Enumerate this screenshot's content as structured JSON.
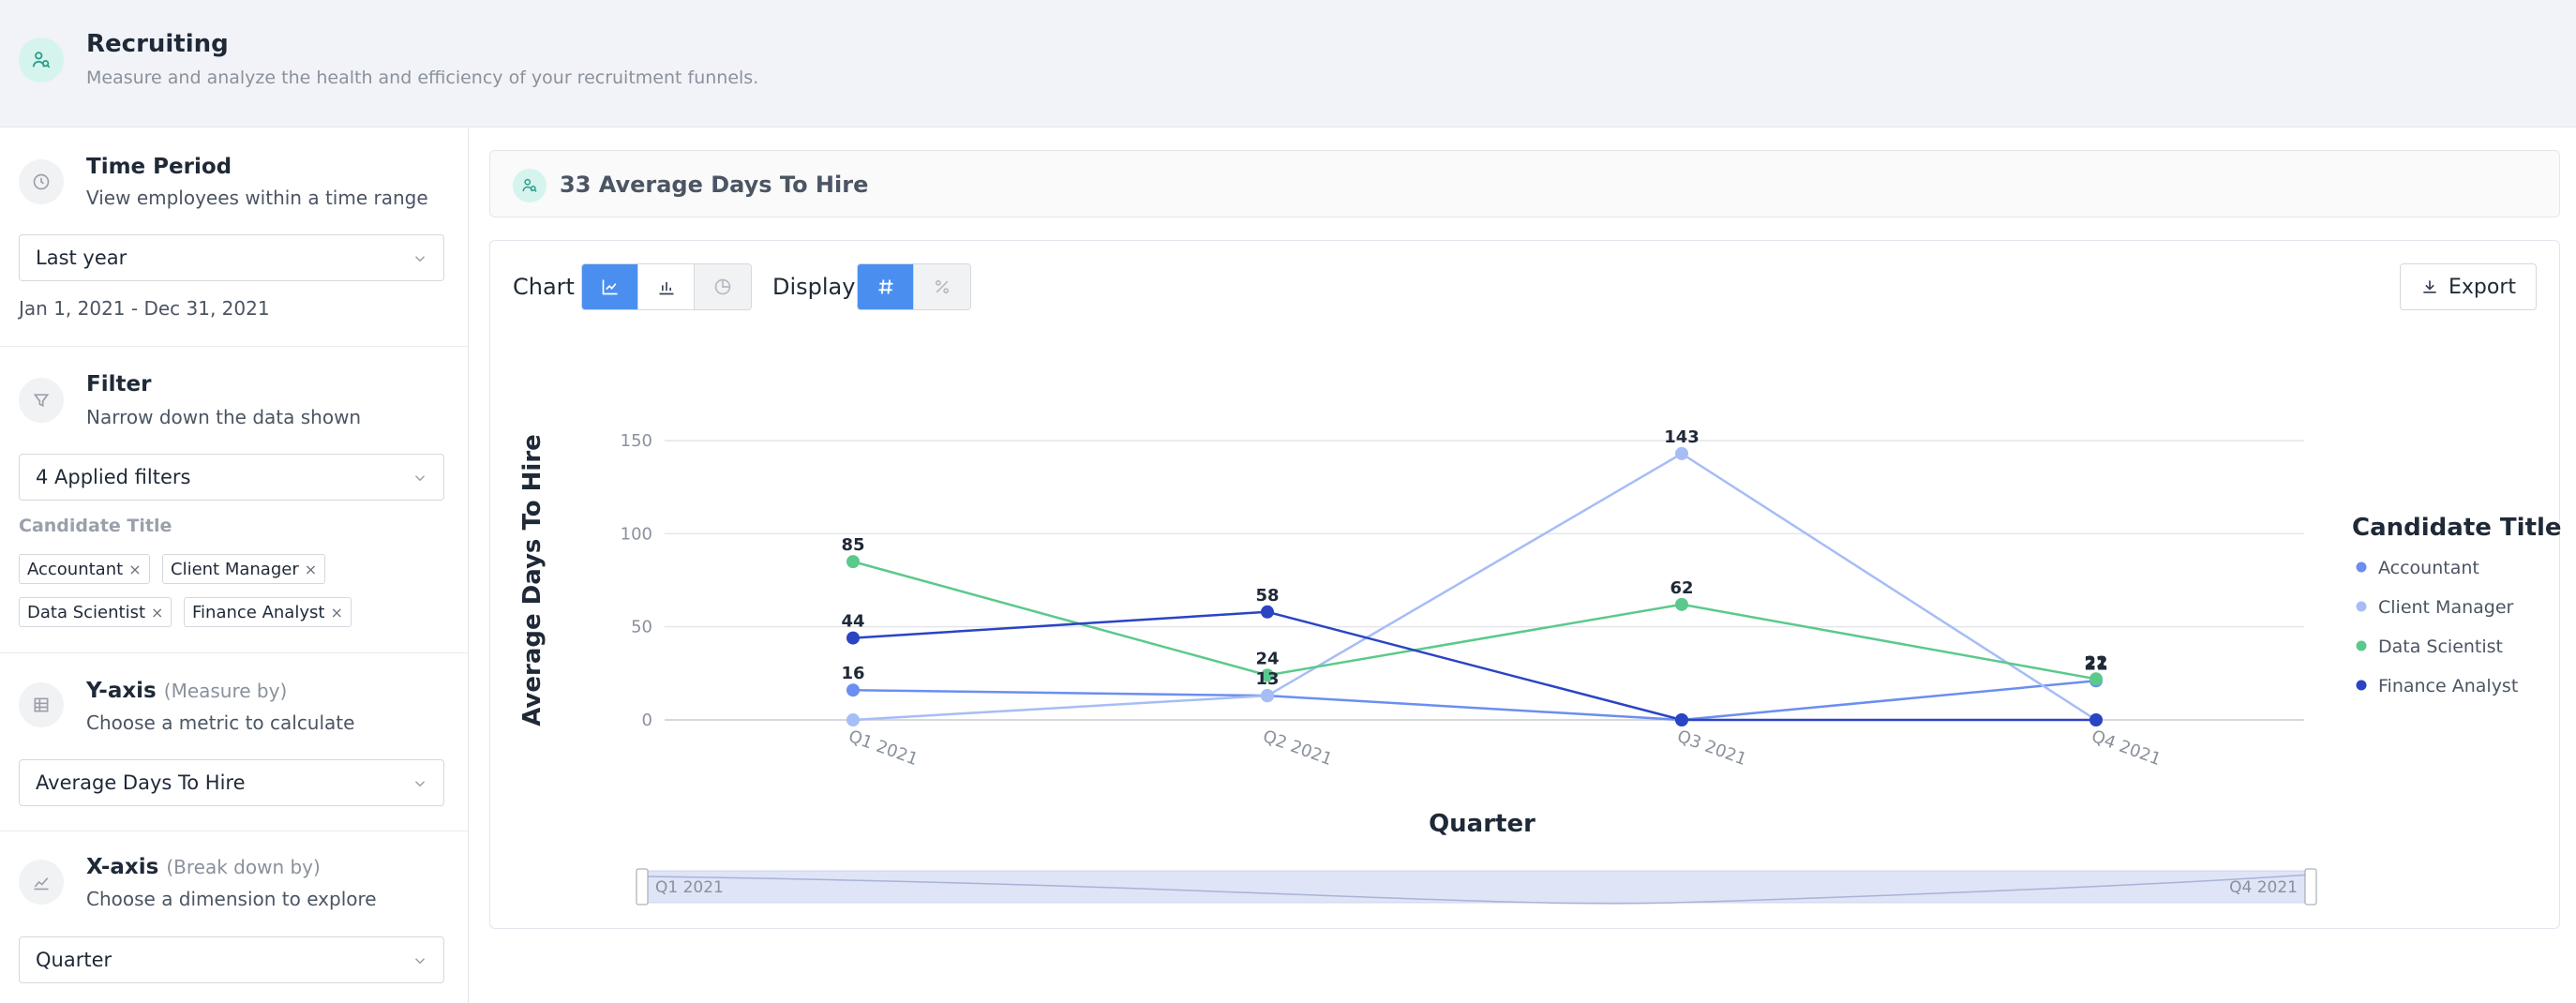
{
  "header": {
    "title": "Recruiting",
    "subtitle": "Measure and analyze the health and efficiency of your recruitment funnels."
  },
  "sidebar": {
    "time_period": {
      "title": "Time Period",
      "subtitle": "View employees within a time range",
      "selected": "Last year",
      "range": "Jan 1, 2021 - Dec 31, 2021"
    },
    "filter": {
      "title": "Filter",
      "subtitle": "Narrow down the data shown",
      "selected": "4 Applied filters",
      "group_label": "Candidate Title",
      "chips": [
        "Accountant",
        "Client Manager",
        "Data Scientist",
        "Finance Analyst"
      ],
      "chip_remove": "×"
    },
    "y_axis": {
      "title": "Y-axis",
      "qualifier": "(Measure by)",
      "subtitle": "Choose a metric to calculate",
      "selected": "Average Days To Hire"
    },
    "x_axis": {
      "title": "X-axis",
      "qualifier": "(Break down by)",
      "subtitle": "Choose a dimension to explore",
      "selected": "Quarter"
    }
  },
  "kpi": {
    "text": "33 Average Days To Hire"
  },
  "toolbar": {
    "chart_label": "Chart",
    "display_label": "Display",
    "export_label": "Export"
  },
  "icons": {
    "header": "recruiting-people-icon",
    "time": "clock-icon",
    "filter": "funnel-icon",
    "y_axis": "table-icon",
    "x_axis": "line-chart-icon",
    "chart_types": [
      "line-chart-icon",
      "bar-chart-icon",
      "pie-chart-icon"
    ],
    "display_types": [
      "hash-icon",
      "percent-icon"
    ],
    "export": "download-icon"
  },
  "colors": {
    "accent": "#4a8ff0",
    "teal_bg": "#d5f4ee"
  },
  "chart_data": {
    "type": "line",
    "categories": [
      "Q1 2021",
      "Q2 2021",
      "Q3 2021",
      "Q4 2021"
    ],
    "xlabel": "Quarter",
    "ylabel": "Average Days To Hire",
    "ylim": [
      0,
      150
    ],
    "yticks": [
      0,
      50,
      100,
      150
    ],
    "grid": true,
    "legend": {
      "title": "Candidate Title",
      "position": "right"
    },
    "series": [
      {
        "name": "Accountant",
        "color": "#6b8ef0",
        "values": [
          16,
          13,
          0,
          21
        ]
      },
      {
        "name": "Client Manager",
        "color": "#a6bdf6",
        "values": [
          0,
          13,
          143,
          0
        ]
      },
      {
        "name": "Data Scientist",
        "color": "#5bc98c",
        "values": [
          85,
          24,
          62,
          22
        ]
      },
      {
        "name": "Finance Analyst",
        "color": "#2a44c4",
        "values": [
          44,
          58,
          0,
          0
        ]
      }
    ],
    "data_labels": [
      {
        "category": "Q1 2021",
        "value": 85,
        "text": "85"
      },
      {
        "category": "Q1 2021",
        "value": 44,
        "text": "44"
      },
      {
        "category": "Q1 2021",
        "value": 16,
        "text": "16"
      },
      {
        "category": "Q2 2021",
        "value": 58,
        "text": "58"
      },
      {
        "category": "Q2 2021",
        "value": 24,
        "text": "24"
      },
      {
        "category": "Q2 2021",
        "value": 13,
        "text": "13"
      },
      {
        "category": "Q3 2021",
        "value": 143,
        "text": "143"
      },
      {
        "category": "Q3 2021",
        "value": 62,
        "text": "62"
      },
      {
        "category": "Q4 2021",
        "value": 22,
        "text": "22"
      },
      {
        "category": "Q4 2021",
        "value": 21,
        "text": "21"
      }
    ],
    "zoom": {
      "start": "Q1 2021",
      "end": "Q4 2021"
    }
  }
}
